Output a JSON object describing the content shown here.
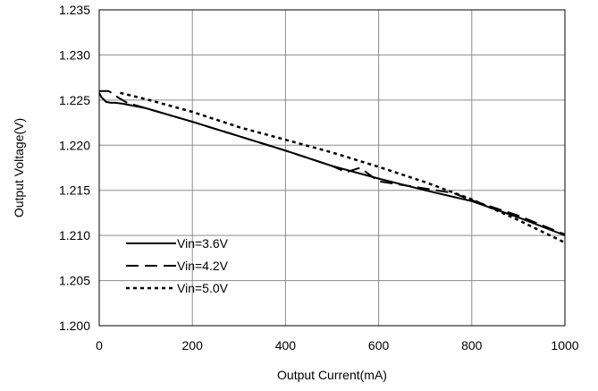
{
  "chart_data": {
    "type": "line",
    "title": "",
    "xlabel": "Output Current(mA)",
    "ylabel": "Output Voltage(V)",
    "xlim": [
      0,
      1000
    ],
    "ylim": [
      1.2,
      1.235
    ],
    "xticks": [
      0,
      200,
      400,
      600,
      800,
      1000
    ],
    "xtick_labels": [
      "0",
      "200",
      "400",
      "600",
      "800",
      "1000"
    ],
    "yticks": [
      1.2,
      1.205,
      1.21,
      1.215,
      1.22,
      1.225,
      1.23,
      1.235
    ],
    "ytick_labels": [
      "1.200",
      "1.205",
      "1.210",
      "1.215",
      "1.220",
      "1.225",
      "1.230",
      "1.235"
    ],
    "grid": true,
    "legend_position": "bottom-left",
    "series": [
      {
        "name": "Vin=3.6V",
        "style": "solid",
        "color": "#000000",
        "x": [
          0,
          5,
          15,
          25,
          35,
          50,
          100,
          200,
          300,
          400,
          500,
          600,
          700,
          800,
          900,
          1000
        ],
        "y": [
          1.2258,
          1.2253,
          1.2248,
          1.2247,
          1.2247,
          1.2246,
          1.2241,
          1.2226,
          1.221,
          1.2194,
          1.2177,
          1.2163,
          1.215,
          1.2138,
          1.212,
          1.21
        ]
      },
      {
        "name": "Vin=4.2V",
        "style": "dashed",
        "color": "#000000",
        "x": [
          0,
          10,
          20,
          30,
          40,
          60,
          100,
          200,
          300,
          400,
          500,
          530,
          560,
          600,
          700,
          760,
          800,
          900,
          1000
        ],
        "y": [
          1.226,
          1.226,
          1.226,
          1.2257,
          1.2253,
          1.2247,
          1.2241,
          1.2226,
          1.221,
          1.2194,
          1.2177,
          1.217,
          1.2175,
          1.216,
          1.2152,
          1.2147,
          1.2139,
          1.2122,
          1.2101
        ]
      },
      {
        "name": "Vin=5.0V",
        "style": "dotted",
        "color": "#000000",
        "x": [
          45,
          100,
          200,
          300,
          400,
          500,
          600,
          700,
          800,
          900,
          1000
        ],
        "y": [
          1.2258,
          1.2251,
          1.2237,
          1.222,
          1.2206,
          1.2192,
          1.2176,
          1.2159,
          1.214,
          1.2117,
          1.2092
        ]
      }
    ]
  }
}
